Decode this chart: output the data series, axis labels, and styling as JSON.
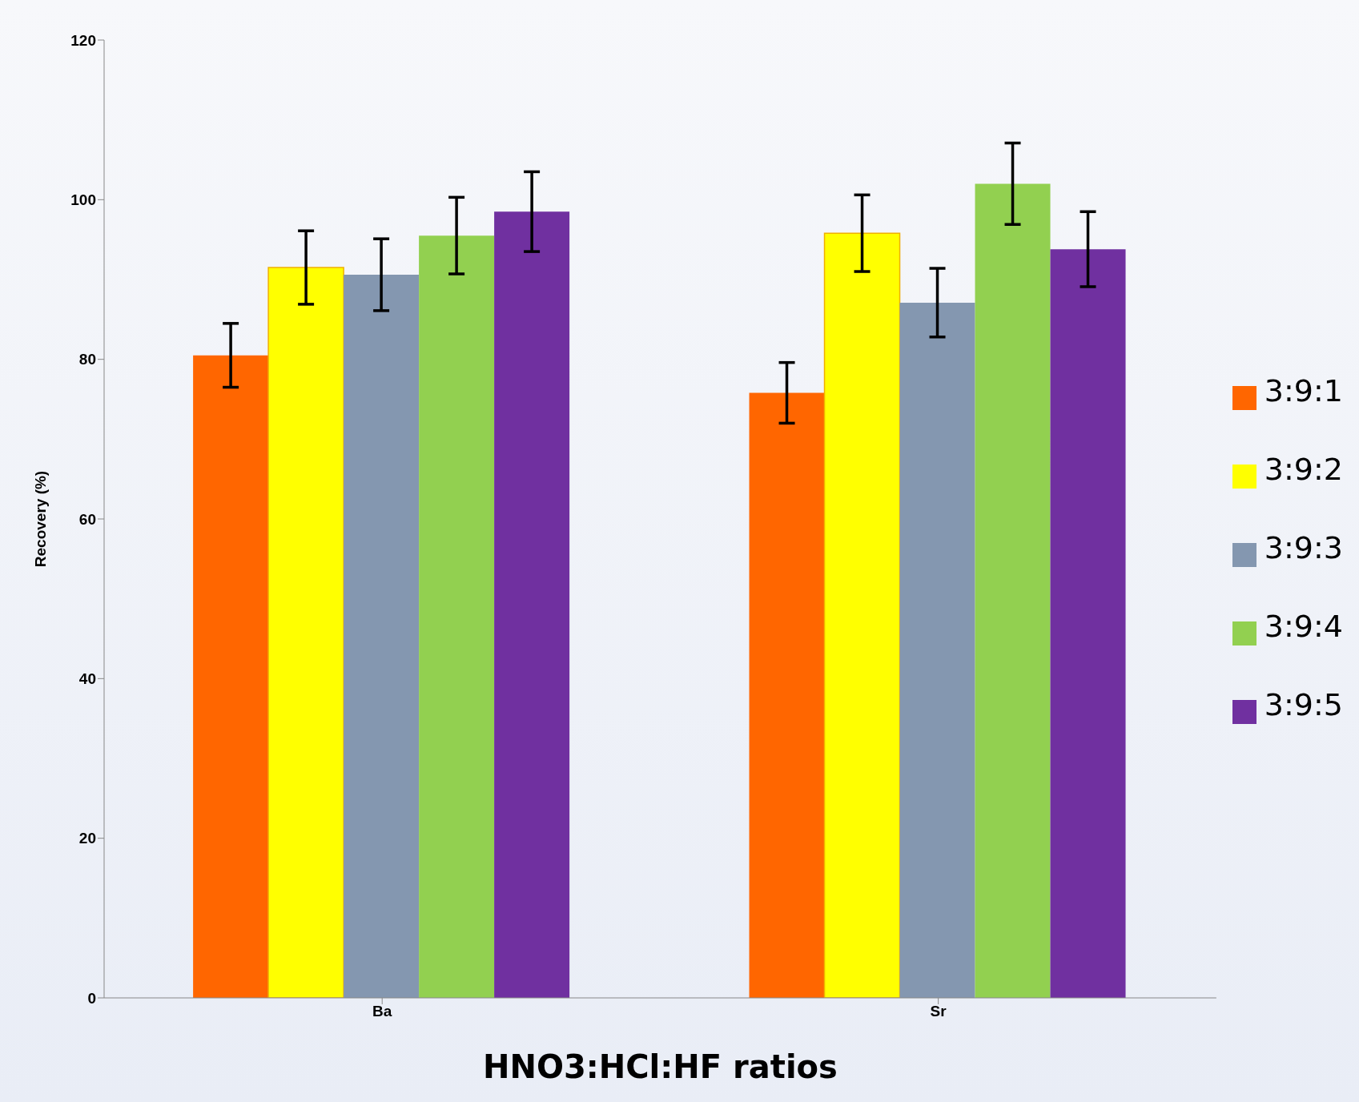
{
  "chart_data": {
    "type": "bar",
    "xlabel": "HNO3:HCl:HF ratios",
    "ylabel": "Recovery (%)",
    "categories": [
      "Ba",
      "Sr"
    ],
    "series": [
      {
        "name": "3:9:1",
        "color": "#ff6600",
        "values": [
          80.5,
          75.8
        ],
        "errors": [
          4,
          3.8
        ]
      },
      {
        "name": "3:9:2",
        "color": "#ffff00",
        "values": [
          91.5,
          95.8
        ],
        "errors": [
          4.6,
          4.8
        ]
      },
      {
        "name": "3:9:3",
        "color": "#8497b0",
        "values": [
          90.6,
          87.1
        ],
        "errors": [
          4.5,
          4.3
        ]
      },
      {
        "name": "3:9:4",
        "color": "#92d050",
        "values": [
          95.5,
          102
        ],
        "errors": [
          4.8,
          5.1
        ]
      },
      {
        "name": "3:9:5",
        "color": "#7030a0",
        "values": [
          98.5,
          93.8
        ],
        "errors": [
          5,
          4.7
        ]
      }
    ],
    "ylim": [
      0,
      120
    ],
    "yticks": [
      0,
      20,
      40,
      60,
      80,
      100,
      120
    ],
    "grid": false,
    "legend": "right"
  }
}
